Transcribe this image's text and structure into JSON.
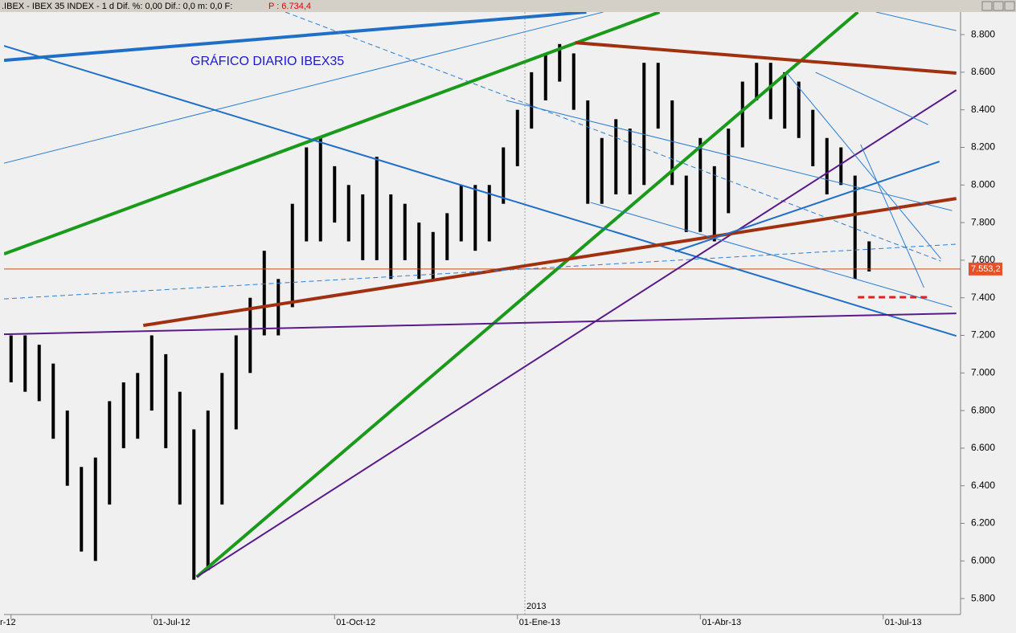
{
  "chart_data": {
    "type": "hilo",
    "header": ".IBEX - IBEX 35 INDEX - 1 d Dif. %: 0,00 Dif.: 0,0 m: 0,0 F:",
    "header_price": "P : 6.734,4",
    "title": "GRÁFICO DIARIO IBEX35",
    "year_label": "2013",
    "categories": [
      "r-12",
      null,
      null,
      null,
      null,
      null,
      null,
      null,
      null,
      null,
      "01-Jul-12",
      null,
      null,
      null,
      null,
      null,
      null,
      null,
      null,
      null,
      null,
      null,
      null,
      "01-Oct-12",
      null,
      null,
      null,
      null,
      null,
      null,
      null,
      null,
      null,
      null,
      null,
      null,
      "01-Ene-13",
      null,
      null,
      null,
      null,
      null,
      null,
      null,
      null,
      null,
      null,
      null,
      null,
      "01-Abr-13",
      null,
      null,
      null,
      null,
      null,
      null,
      null,
      null,
      null,
      null,
      null,
      null,
      "01-Jul-13",
      null,
      null,
      null,
      null,
      null
    ],
    "high": [
      7200,
      7200,
      7150,
      7050,
      6800,
      6500,
      6550,
      6850,
      6950,
      7000,
      7200,
      7100,
      6900,
      6700,
      6800,
      7000,
      7200,
      7400,
      7650,
      7500,
      7900,
      8200,
      8250,
      8100,
      8000,
      7950,
      8150,
      7950,
      7900,
      7800,
      7750,
      7850,
      8000,
      8000,
      8000,
      8200,
      8400,
      8600,
      8700,
      8750,
      8700,
      8450,
      8250,
      8350,
      8300,
      8650,
      8650,
      8450,
      8050,
      8250,
      8100,
      8300,
      8550,
      8650,
      8650,
      8600,
      8550,
      8400,
      8250,
      8200,
      8050,
      7700,
      null,
      null,
      null,
      null,
      null,
      null
    ],
    "low": [
      6950,
      6900,
      6850,
      6650,
      6400,
      6050,
      6000,
      6300,
      6600,
      6650,
      6800,
      6600,
      6300,
      5900,
      5950,
      6300,
      6700,
      7000,
      7200,
      7200,
      7350,
      7700,
      7700,
      7800,
      7700,
      7600,
      7600,
      7500,
      7600,
      7500,
      7500,
      7600,
      7700,
      7650,
      7700,
      7900,
      8100,
      8300,
      8450,
      8550,
      8400,
      7900,
      7900,
      7950,
      7950,
      8000,
      8300,
      8000,
      7750,
      7750,
      7700,
      7850,
      8200,
      8450,
      8350,
      8300,
      8250,
      8100,
      7950,
      8000,
      7500,
      7540,
      null,
      null,
      null,
      null,
      null,
      null
    ],
    "color": "#000000",
    "ylim": [
      5715,
      8920
    ],
    "yticks": [
      {
        "value": 5800,
        "label": "5.800"
      },
      {
        "value": 6000,
        "label": "6.000"
      },
      {
        "value": 6200,
        "label": "6.200"
      },
      {
        "value": 6400,
        "label": "6.400"
      },
      {
        "value": 6600,
        "label": "6.600"
      },
      {
        "value": 6800,
        "label": "6.800"
      },
      {
        "value": 7000,
        "label": "7.000"
      },
      {
        "value": 7200,
        "label": "7.200"
      },
      {
        "value": 7400,
        "label": "7.400"
      },
      {
        "value": 7600,
        "label": "7.600"
      },
      {
        "value": 7800,
        "label": "7.800"
      },
      {
        "value": 8000,
        "label": "8.000"
      },
      {
        "value": 8200,
        "label": "8.200"
      },
      {
        "value": 8400,
        "label": "8.400"
      },
      {
        "value": 8600,
        "label": "8.600"
      },
      {
        "value": 8800,
        "label": "8.800"
      }
    ],
    "last_price": {
      "value": 7553.2,
      "label": "7.553,2"
    },
    "trendlines": [
      {
        "color": "#1f6fc8",
        "width": 4,
        "dash": false,
        "points": [
          [
            -0.5,
            8663
          ],
          [
            40.9,
            8920
          ]
        ]
      },
      {
        "color": "#2a7fd4",
        "width": 1,
        "dash": false,
        "points": [
          [
            -0.5,
            8116
          ],
          [
            42.1,
            8920
          ]
        ]
      },
      {
        "color": "#2a7fd4",
        "width": 1,
        "dash": true,
        "points": [
          [
            19.5,
            8920
          ],
          [
            66.1,
            7595
          ]
        ]
      },
      {
        "color": "#1a9a1a",
        "width": 4,
        "dash": false,
        "points": [
          [
            -0.5,
            7633
          ],
          [
            46.1,
            8920
          ]
        ]
      },
      {
        "color": "#1a9a1a",
        "width": 4,
        "dash": false,
        "points": [
          [
            13.2,
            5915
          ],
          [
            60.2,
            8920
          ]
        ]
      },
      {
        "color": "#1f6fc8",
        "width": 2,
        "dash": false,
        "points": [
          [
            -0.5,
            8740
          ],
          [
            67.2,
            7197
          ]
        ]
      },
      {
        "color": "#5a1a8a",
        "width": 2,
        "dash": false,
        "points": [
          [
            13.2,
            5915
          ],
          [
            67.2,
            8505
          ]
        ]
      },
      {
        "color": "#5a1a8a",
        "width": 2,
        "dash": false,
        "points": [
          [
            -0.5,
            7206
          ],
          [
            67.2,
            7317
          ]
        ]
      },
      {
        "color": "#a0300f",
        "width": 4,
        "dash": false,
        "points": [
          [
            9.4,
            7253
          ],
          [
            67.2,
            7928
          ]
        ]
      },
      {
        "color": "#a0300f",
        "width": 4,
        "dash": false,
        "points": [
          [
            40.1,
            8757
          ],
          [
            67.2,
            8595
          ]
        ]
      },
      {
        "color": "#1f6fc8",
        "width": 2,
        "dash": false,
        "points": [
          [
            47.2,
            7646
          ],
          [
            66.0,
            8125
          ]
        ]
      },
      {
        "color": "#2a7fd4",
        "width": 1,
        "dash": true,
        "points": [
          [
            -0.5,
            7394
          ],
          [
            67.2,
            7685
          ]
        ]
      },
      {
        "color": "#2a7fd4",
        "width": 1,
        "dash": false,
        "points": [
          [
            35.2,
            8450
          ],
          [
            66.9,
            7864
          ]
        ]
      },
      {
        "color": "#2a7fd4",
        "width": 1,
        "dash": false,
        "points": [
          [
            41.2,
            7907
          ],
          [
            66.9,
            7351
          ]
        ]
      },
      {
        "color": "#2a7fd4",
        "width": 1,
        "dash": false,
        "points": [
          [
            57.2,
            8599
          ],
          [
            65.2,
            8321
          ]
        ]
      },
      {
        "color": "#2a7fd4",
        "width": 1,
        "dash": false,
        "points": [
          [
            55.2,
            8591
          ],
          [
            66.1,
            7608
          ]
        ]
      },
      {
        "color": "#2a7fd4",
        "width": 1,
        "dash": false,
        "points": [
          [
            60.4,
            8215
          ],
          [
            64.9,
            7454
          ]
        ]
      },
      {
        "color": "#2a7fd4",
        "width": 1,
        "dash": false,
        "points": [
          [
            61.5,
            8920
          ],
          [
            67.2,
            8821
          ]
        ]
      },
      {
        "color": "#e02020",
        "width": 3,
        "dash": true,
        "points": [
          [
            60.2,
            7403
          ],
          [
            65.4,
            7403
          ]
        ]
      }
    ]
  }
}
